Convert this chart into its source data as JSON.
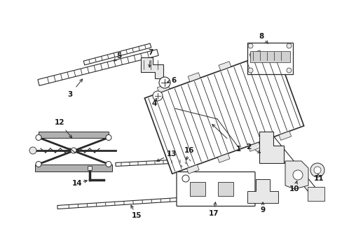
{
  "background_color": "#ffffff",
  "fig_width": 4.89,
  "fig_height": 3.6,
  "dpi": 100,
  "text_color": "#1a1a1a",
  "line_color": "#2a2a2a",
  "part_fill": "#e8e8e8",
  "part_dark": "#b0b0b0"
}
